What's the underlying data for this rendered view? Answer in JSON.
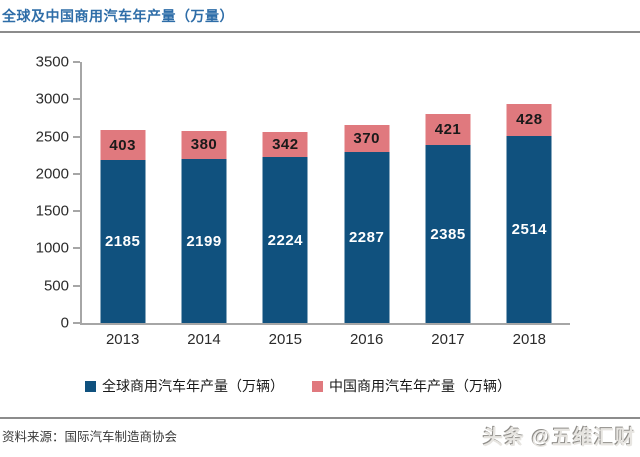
{
  "title": "全球及中国商用汽车年产量（万量）",
  "source_note": "资料来源：国际汽车制造商协会",
  "watermark": "头条 @五维汇财",
  "colors": {
    "title": "#2E6DA8",
    "global_series": "#10517E",
    "china_series": "#E0797E",
    "axis": "#A6A6A6",
    "rule": "#8C8C8C",
    "background": "#FFFFFF"
  },
  "chart_data": {
    "type": "bar",
    "stacked": true,
    "title": "全球及中国商用汽车年产量（万量）",
    "categories": [
      "2013",
      "2014",
      "2015",
      "2016",
      "2017",
      "2018"
    ],
    "series": [
      {
        "name": "全球商用汽车年产量（万辆）",
        "color": "#10517E",
        "label_color": "#FFFFFF",
        "values": [
          2185,
          2199,
          2224,
          2287,
          2385,
          2514
        ]
      },
      {
        "name": "中国商用汽车年产量（万辆）",
        "color": "#E0797E",
        "label_color": "#1A1A1A",
        "values": [
          403,
          380,
          342,
          370,
          421,
          428
        ]
      }
    ],
    "xlabel": "",
    "ylabel": "",
    "ylim": [
      0,
      3500
    ],
    "yticks": [
      0,
      500,
      1000,
      1500,
      2000,
      2500,
      3000,
      3500
    ],
    "grid": false,
    "data_labels": true,
    "legend_position": "bottom"
  }
}
